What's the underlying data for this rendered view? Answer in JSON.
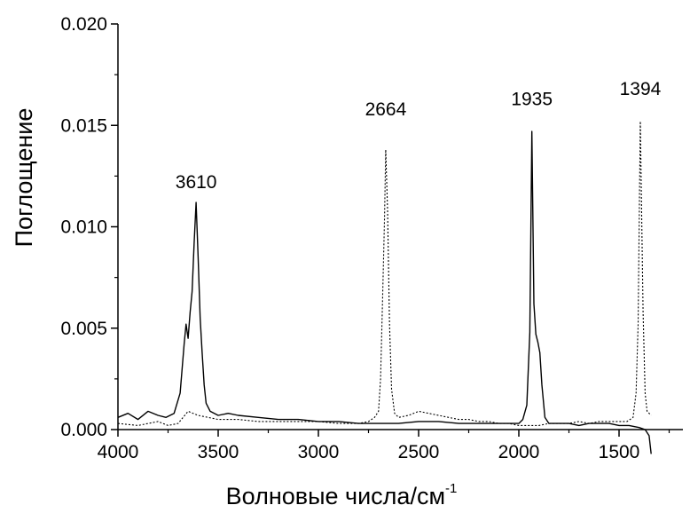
{
  "chart_data": {
    "type": "line",
    "title": "",
    "xlabel": "Волновые числа/см",
    "xlabel_superscript": "-1",
    "ylabel": "Поглощение",
    "xlim": [
      4000,
      1300
    ],
    "ylim": [
      0.0,
      0.02
    ],
    "x_reversed": true,
    "grid": false,
    "xticks": [
      "4000",
      "3500",
      "3000",
      "2500",
      "2000",
      "1500"
    ],
    "yticks": [
      "0.000",
      "0.005",
      "0.010",
      "0.015",
      "0.020"
    ],
    "annotations": [
      "3610",
      "2664",
      "1935",
      "1394"
    ],
    "series": [
      {
        "style": "solid",
        "x": [
          4000,
          3950,
          3900,
          3850,
          3800,
          3760,
          3720,
          3690,
          3670,
          3660,
          3650,
          3640,
          3630,
          3620,
          3610,
          3600,
          3590,
          3580,
          3570,
          3560,
          3540,
          3500,
          3450,
          3400,
          3300,
          3200,
          3100,
          3000,
          2900,
          2800,
          2700,
          2600,
          2500,
          2400,
          2300,
          2200,
          2100,
          2000,
          1980,
          1960,
          1945,
          1935,
          1925,
          1915,
          1905,
          1895,
          1885,
          1870,
          1850,
          1800,
          1750,
          1700,
          1650,
          1600,
          1550,
          1500,
          1450,
          1400,
          1370,
          1350,
          1340
        ],
        "y": [
          0.0006,
          0.0008,
          0.0005,
          0.0009,
          0.0007,
          0.0006,
          0.0008,
          0.0018,
          0.0042,
          0.0052,
          0.0045,
          0.0058,
          0.0068,
          0.0092,
          0.0112,
          0.0085,
          0.0055,
          0.0038,
          0.0022,
          0.0013,
          0.0009,
          0.0007,
          0.0008,
          0.0007,
          0.0006,
          0.0005,
          0.0005,
          0.0004,
          0.0004,
          0.0003,
          0.0003,
          0.0003,
          0.0004,
          0.0004,
          0.0003,
          0.0003,
          0.0003,
          0.0003,
          0.0005,
          0.0012,
          0.0048,
          0.0147,
          0.0062,
          0.0047,
          0.0043,
          0.0038,
          0.0022,
          0.0006,
          0.0003,
          0.0003,
          0.0003,
          0.0002,
          0.0003,
          0.0003,
          0.0003,
          0.0002,
          0.0002,
          0.0001,
          0.0,
          -0.0003,
          -0.0012
        ]
      },
      {
        "style": "dotted",
        "x": [
          4000,
          3900,
          3800,
          3750,
          3700,
          3650,
          3600,
          3500,
          3400,
          3300,
          3200,
          3100,
          3000,
          2900,
          2800,
          2750,
          2720,
          2700,
          2690,
          2680,
          2670,
          2664,
          2655,
          2645,
          2635,
          2620,
          2600,
          2550,
          2500,
          2450,
          2400,
          2350,
          2300,
          2250,
          2200,
          2150,
          2100,
          2050,
          2000,
          1950,
          1900,
          1850,
          1800,
          1750,
          1700,
          1650,
          1600,
          1550,
          1500,
          1460,
          1430,
          1415,
          1405,
          1398,
          1394,
          1388,
          1380,
          1370,
          1360,
          1350,
          1340
        ],
        "y": [
          0.0003,
          0.0002,
          0.0004,
          0.0002,
          0.0003,
          0.0009,
          0.0007,
          0.0005,
          0.0005,
          0.0004,
          0.0004,
          0.0004,
          0.0004,
          0.0003,
          0.0003,
          0.0004,
          0.0006,
          0.0009,
          0.0025,
          0.0063,
          0.0105,
          0.0138,
          0.0108,
          0.0052,
          0.002,
          0.0008,
          0.0006,
          0.0007,
          0.0009,
          0.0008,
          0.0007,
          0.0006,
          0.0005,
          0.0005,
          0.0004,
          0.0004,
          0.0003,
          0.0003,
          0.0002,
          0.0002,
          0.0002,
          0.0003,
          0.0003,
          0.0003,
          0.0004,
          0.0003,
          0.0004,
          0.0004,
          0.0004,
          0.0004,
          0.0006,
          0.0018,
          0.0052,
          0.0118,
          0.0152,
          0.0112,
          0.0058,
          0.0018,
          0.0009,
          0.0008,
          0.0007
        ]
      }
    ]
  }
}
